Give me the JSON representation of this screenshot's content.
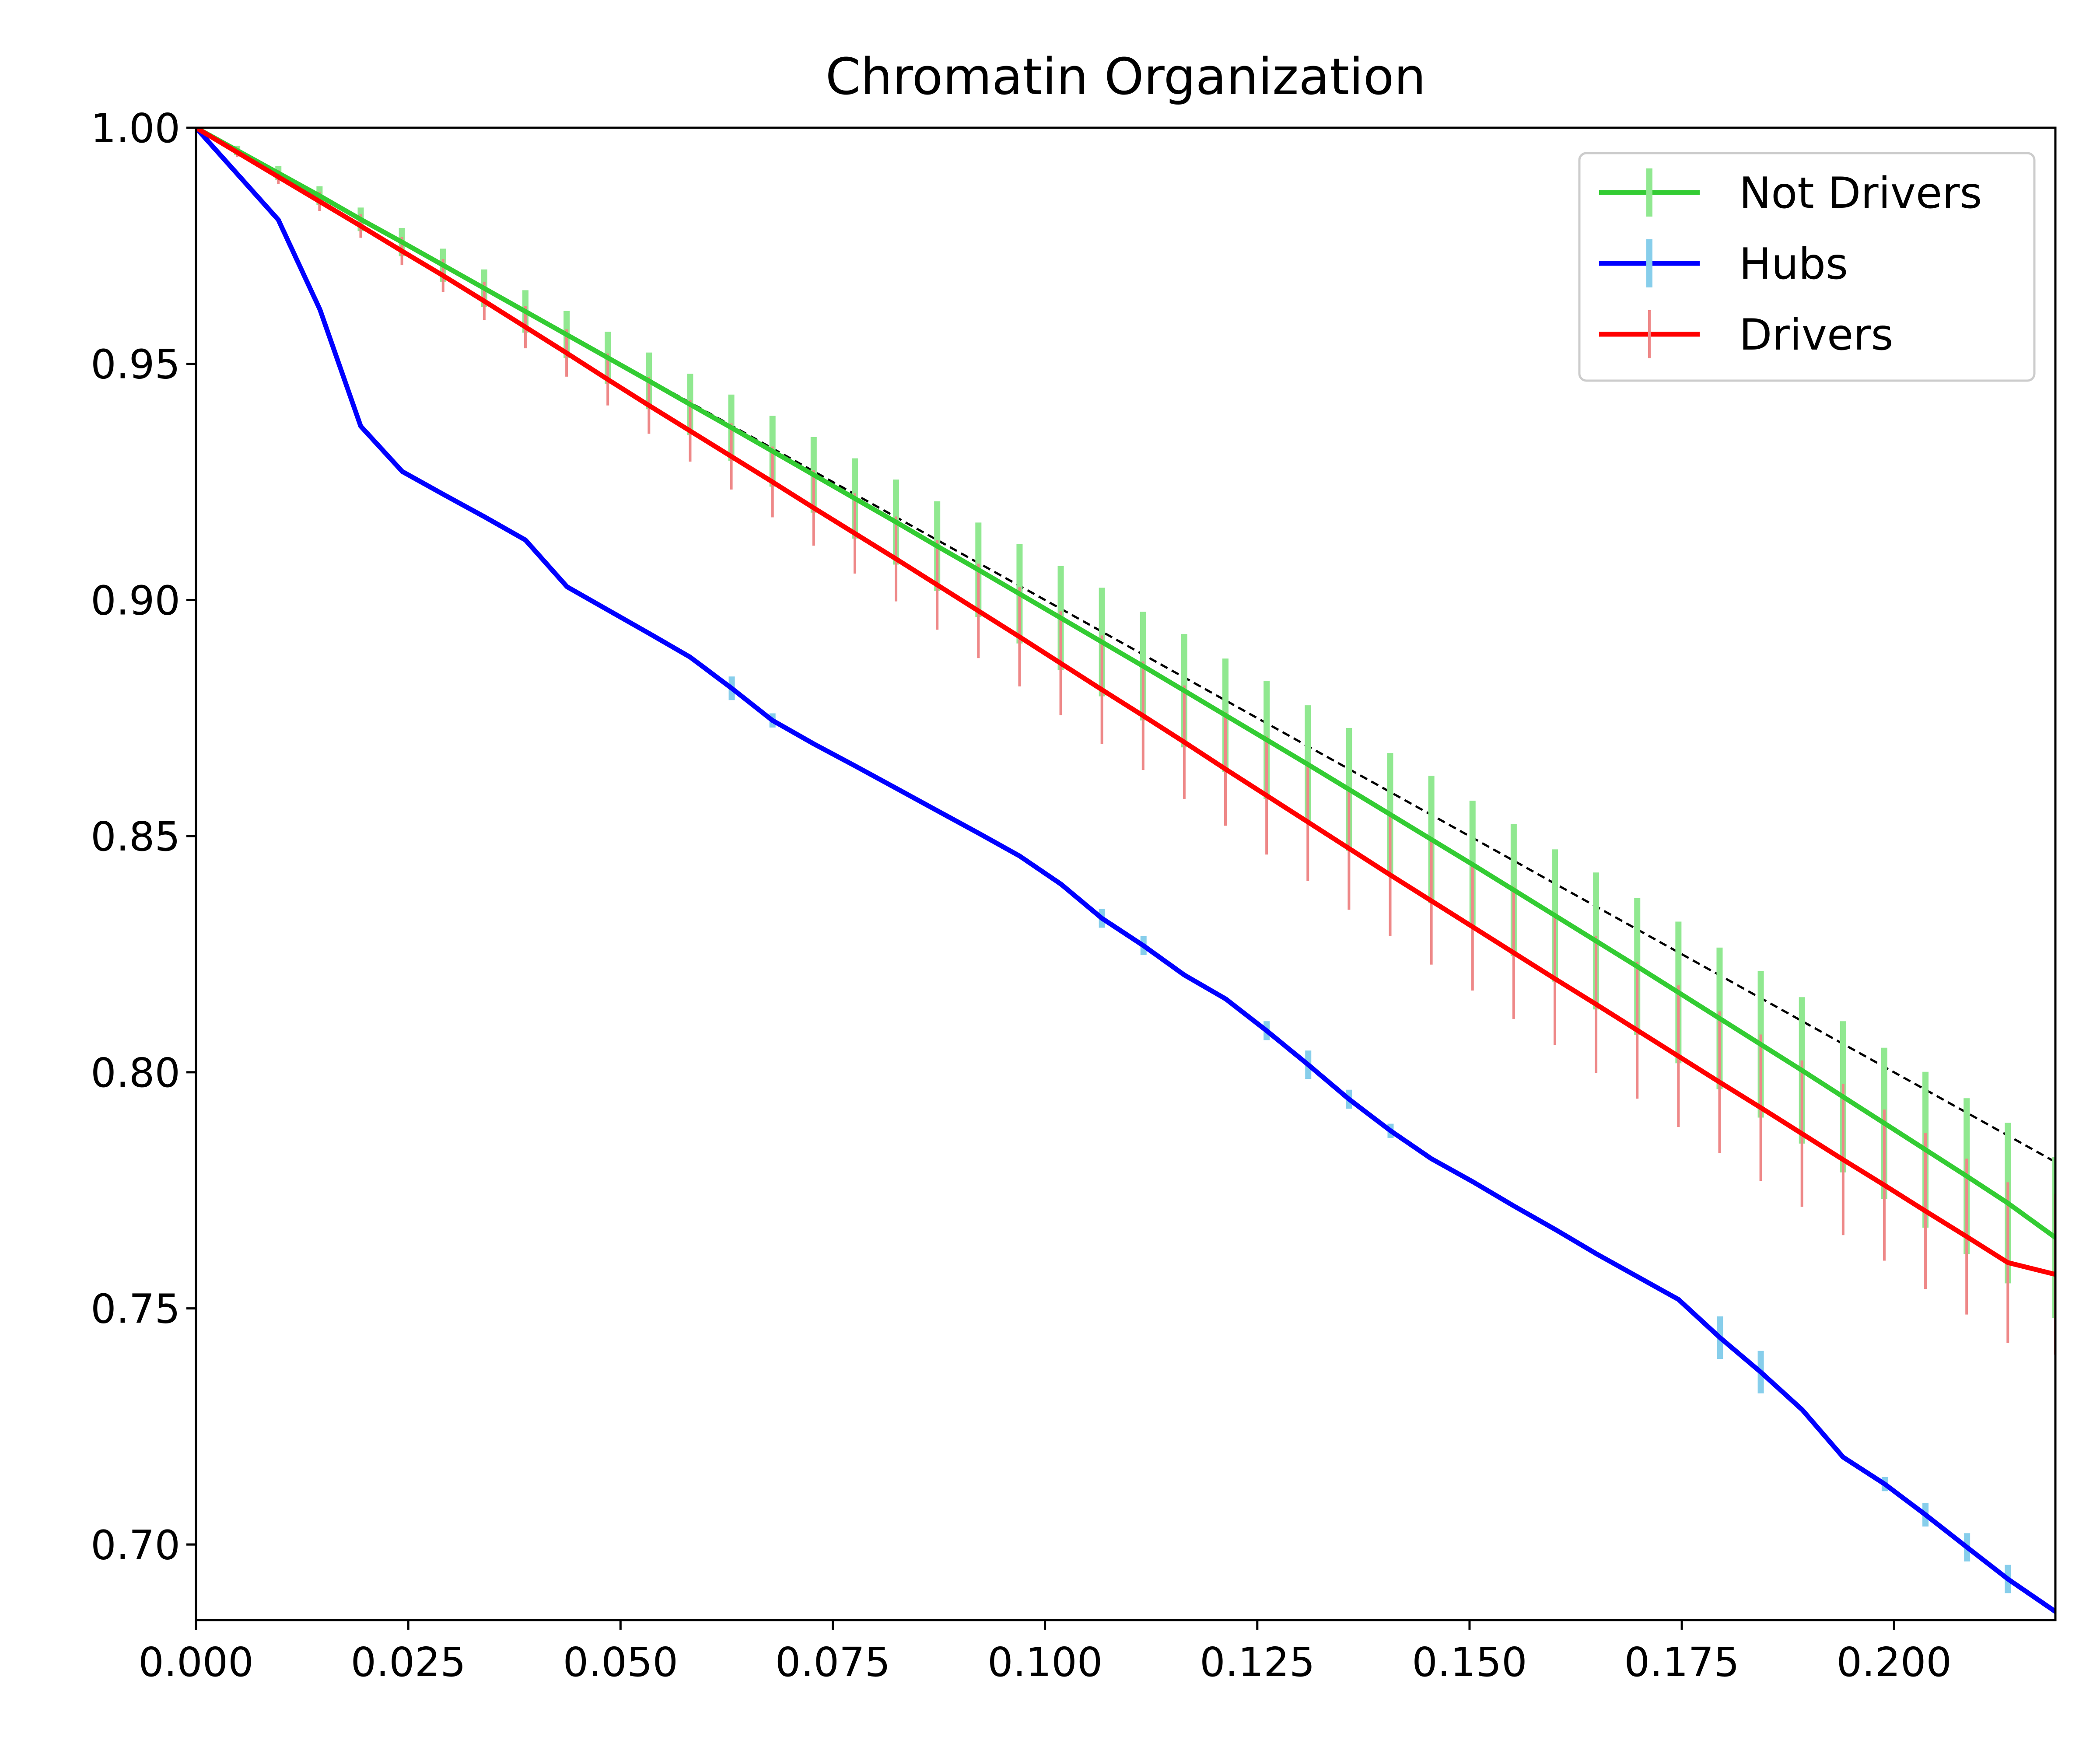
{
  "chart_data": {
    "type": "line",
    "title": "Chromatin Organization",
    "xlabel": "",
    "ylabel": "",
    "xlim": [
      0.0,
      0.219
    ],
    "ylim": [
      0.684,
      1.0
    ],
    "x_ticks": [
      "0.000",
      "0.025",
      "0.050",
      "0.075",
      "0.100",
      "0.125",
      "0.150",
      "0.175",
      "0.200"
    ],
    "x_tick_values": [
      0.0,
      0.025,
      0.05,
      0.075,
      0.1,
      0.125,
      0.15,
      0.175,
      0.2
    ],
    "y_ticks": [
      "0.70",
      "0.75",
      "0.80",
      "0.85",
      "0.90",
      "0.95",
      "1.00"
    ],
    "y_tick_values": [
      0.7,
      0.75,
      0.8,
      0.85,
      0.9,
      0.95,
      1.0
    ],
    "grid": false,
    "legend_position": "top-right",
    "reference_line": {
      "style": "dashed",
      "color": "#000000",
      "x": [
        0.0,
        0.219
      ],
      "y": [
        1.0,
        0.781
      ]
    },
    "series": [
      {
        "name": "Not Drivers",
        "color": "#33cc33",
        "error_color": "#90e890",
        "x": [
          0.0,
          0.00485,
          0.0097,
          0.01455,
          0.0194,
          0.02425,
          0.0291,
          0.03395,
          0.0388,
          0.04365,
          0.0485,
          0.05335,
          0.0582,
          0.06305,
          0.0679,
          0.07275,
          0.0776,
          0.08245,
          0.0873,
          0.09215,
          0.097,
          0.10185,
          0.1067,
          0.11155,
          0.1164,
          0.12125,
          0.1261,
          0.13095,
          0.1358,
          0.14065,
          0.1455,
          0.15035,
          0.1552,
          0.16005,
          0.1649,
          0.16975,
          0.1746,
          0.17945,
          0.1843,
          0.18915,
          0.194,
          0.19885,
          0.2037,
          0.20855,
          0.2134,
          0.219
        ],
        "y": [
          1.0,
          0.9952,
          0.9904,
          0.9856,
          0.9806,
          0.9758,
          0.9709,
          0.966,
          0.9611,
          0.9562,
          0.9513,
          0.9464,
          0.9414,
          0.9365,
          0.9315,
          0.9265,
          0.9215,
          0.9165,
          0.9114,
          0.9064,
          0.9013,
          0.8962,
          0.8911,
          0.886,
          0.8808,
          0.8756,
          0.8704,
          0.8652,
          0.8599,
          0.8546,
          0.8493,
          0.844,
          0.8386,
          0.8332,
          0.8278,
          0.8224,
          0.8169,
          0.8114,
          0.8059,
          0.8004,
          0.7948,
          0.7892,
          0.7836,
          0.778,
          0.7723,
          0.765
        ],
        "yerr": [
          0.0,
          0.001,
          0.0015,
          0.002,
          0.0025,
          0.003,
          0.0035,
          0.004,
          0.0045,
          0.005,
          0.0055,
          0.006,
          0.0065,
          0.007,
          0.0075,
          0.008,
          0.0085,
          0.009,
          0.0095,
          0.01,
          0.0105,
          0.011,
          0.0115,
          0.0115,
          0.012,
          0.012,
          0.0125,
          0.0125,
          0.013,
          0.013,
          0.0135,
          0.0135,
          0.014,
          0.014,
          0.0145,
          0.0145,
          0.015,
          0.015,
          0.0155,
          0.0155,
          0.016,
          0.016,
          0.0165,
          0.0165,
          0.017,
          0.017
        ]
      },
      {
        "name": "Hubs",
        "color": "#0000ff",
        "error_color": "#87ceeb",
        "x": [
          0.0,
          0.0097,
          0.0146,
          0.0194,
          0.0243,
          0.0291,
          0.034,
          0.0388,
          0.0437,
          0.0485,
          0.0534,
          0.0582,
          0.0631,
          0.0679,
          0.0728,
          0.0776,
          0.0825,
          0.0873,
          0.0922,
          0.097,
          0.1019,
          0.1067,
          0.1116,
          0.1164,
          0.1213,
          0.1261,
          0.131,
          0.1358,
          0.1407,
          0.1455,
          0.1504,
          0.1552,
          0.1601,
          0.1649,
          0.1698,
          0.1746,
          0.1795,
          0.1843,
          0.1892,
          0.194,
          0.1989,
          0.2037,
          0.2086,
          0.2134,
          0.219
        ],
        "y": [
          1.0,
          0.9805,
          0.9615,
          0.9368,
          0.9272,
          0.9224,
          0.9176,
          0.9127,
          0.9028,
          0.8979,
          0.8929,
          0.8879,
          0.8813,
          0.8745,
          0.8695,
          0.8649,
          0.8601,
          0.8554,
          0.8506,
          0.8458,
          0.8398,
          0.8326,
          0.8268,
          0.8206,
          0.8155,
          0.8088,
          0.8016,
          0.7943,
          0.7876,
          0.7817,
          0.7768,
          0.7717,
          0.7667,
          0.7616,
          0.7567,
          0.7519,
          0.7438,
          0.7365,
          0.7285,
          0.7185,
          0.7128,
          0.7063,
          0.6994,
          0.6927,
          0.6858
        ],
        "yerr": [
          0.0,
          0.0,
          0.0,
          0.0,
          0.0,
          0.0,
          0.0,
          0.0,
          0.0,
          0.0,
          0.0,
          0.0,
          0.0025,
          0.0015,
          0.0,
          0.0,
          0.0,
          0.0,
          0.0,
          0.0,
          0.0,
          0.002,
          0.002,
          0.0,
          0.0,
          0.002,
          0.003,
          0.002,
          0.0015,
          0.0,
          0.0,
          0.0,
          0.0,
          0.0,
          0.0,
          0.0,
          0.0045,
          0.0045,
          0.0,
          0.0,
          0.0015,
          0.0025,
          0.003,
          0.003,
          0.0
        ]
      },
      {
        "name": "Drivers",
        "color": "#ff0000",
        "error_color": "#ee8888",
        "x": [
          0.0,
          0.00485,
          0.0097,
          0.01455,
          0.0194,
          0.02425,
          0.0291,
          0.03395,
          0.0388,
          0.04365,
          0.0485,
          0.05335,
          0.0582,
          0.06305,
          0.0679,
          0.07275,
          0.0776,
          0.08245,
          0.0873,
          0.09215,
          0.097,
          0.10185,
          0.1067,
          0.11155,
          0.1164,
          0.12125,
          0.1261,
          0.13095,
          0.1358,
          0.14065,
          0.1455,
          0.15035,
          0.1552,
          0.16005,
          0.1649,
          0.16975,
          0.1746,
          0.17945,
          0.1843,
          0.18915,
          0.194,
          0.19885,
          0.2037,
          0.20855,
          0.2134,
          0.219
        ],
        "y": [
          1.0,
          0.9948,
          0.9896,
          0.9844,
          0.9792,
          0.9739,
          0.9687,
          0.9633,
          0.9578,
          0.9523,
          0.9467,
          0.9412,
          0.9358,
          0.9304,
          0.925,
          0.9195,
          0.9141,
          0.9087,
          0.9032,
          0.8977,
          0.8922,
          0.8866,
          0.881,
          0.8755,
          0.8699,
          0.8642,
          0.8586,
          0.853,
          0.8474,
          0.8418,
          0.8363,
          0.8308,
          0.8253,
          0.8198,
          0.8144,
          0.8089,
          0.8034,
          0.7979,
          0.7925,
          0.787,
          0.7815,
          0.7761,
          0.7706,
          0.7652,
          0.7597,
          0.7572
        ],
        "yerr": [
          0.0,
          0.001,
          0.0015,
          0.002,
          0.0025,
          0.003,
          0.0035,
          0.004,
          0.0045,
          0.005,
          0.0055,
          0.006,
          0.0065,
          0.007,
          0.0075,
          0.008,
          0.0085,
          0.009,
          0.0095,
          0.01,
          0.0105,
          0.011,
          0.0115,
          0.0115,
          0.012,
          0.012,
          0.0125,
          0.0125,
          0.013,
          0.013,
          0.0135,
          0.0135,
          0.014,
          0.014,
          0.0145,
          0.0145,
          0.015,
          0.015,
          0.0155,
          0.0155,
          0.016,
          0.016,
          0.0165,
          0.0165,
          0.017,
          0.017
        ]
      }
    ]
  }
}
